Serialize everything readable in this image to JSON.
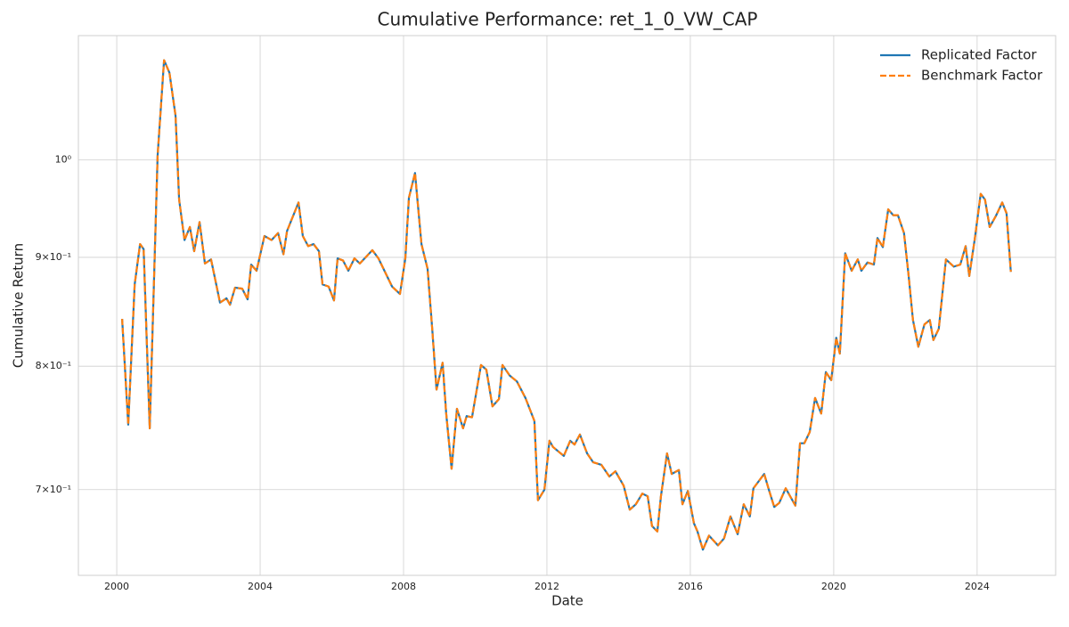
{
  "chart_data": {
    "type": "line",
    "title": "Cumulative Performance: ret_1_0_VW_CAP",
    "xlabel": "Date",
    "ylabel": "Cumulative Return",
    "x": [
      2000.15,
      2000.32,
      2000.5,
      2000.65,
      2000.75,
      2000.92,
      2001.14,
      2001.32,
      2001.47,
      2001.64,
      2001.74,
      2001.89,
      2002.04,
      2002.16,
      2002.31,
      2002.46,
      2002.63,
      2002.88,
      2003.06,
      2003.16,
      2003.3,
      2003.5,
      2003.65,
      2003.75,
      2003.9,
      2004.12,
      2004.32,
      2004.5,
      2004.65,
      2004.75,
      2005.07,
      2005.19,
      2005.34,
      2005.49,
      2005.64,
      2005.74,
      2005.91,
      2006.06,
      2006.16,
      2006.31,
      2006.46,
      2006.63,
      2006.78,
      2007.13,
      2007.3,
      2007.68,
      2007.9,
      2008.05,
      2008.15,
      2008.32,
      2008.5,
      2008.67,
      2008.8,
      2008.92,
      2009.09,
      2009.19,
      2009.34,
      2009.49,
      2009.66,
      2009.76,
      2009.91,
      2010.16,
      2010.31,
      2010.48,
      2010.66,
      2010.76,
      2010.96,
      2011.16,
      2011.4,
      2011.65,
      2011.75,
      2011.93,
      2012.07,
      2012.17,
      2012.47,
      2012.65,
      2012.77,
      2012.92,
      2013.12,
      2013.29,
      2013.52,
      2013.74,
      2013.91,
      2014.14,
      2014.31,
      2014.48,
      2014.66,
      2014.81,
      2014.93,
      2015.08,
      2015.18,
      2015.35,
      2015.48,
      2015.68,
      2015.78,
      2015.93,
      2016.1,
      2016.2,
      2016.35,
      2016.52,
      2016.77,
      2016.94,
      2017.12,
      2017.32,
      2017.49,
      2017.66,
      2017.76,
      2018.06,
      2018.19,
      2018.34,
      2018.48,
      2018.66,
      2018.93,
      2019.06,
      2019.18,
      2019.33,
      2019.48,
      2019.65,
      2019.78,
      2019.93,
      2020.07,
      2020.17,
      2020.32,
      2020.5,
      2020.67,
      2020.77,
      2020.94,
      2021.12,
      2021.22,
      2021.37,
      2021.52,
      2021.66,
      2021.79,
      2021.96,
      2022.09,
      2022.21,
      2022.36,
      2022.53,
      2022.68,
      2022.78,
      2022.93,
      2023.13,
      2023.35,
      2023.53,
      2023.68,
      2023.78,
      2023.93,
      2024.1,
      2024.22,
      2024.35,
      2024.52,
      2024.7,
      2024.82,
      2024.94
    ],
    "series": [
      {
        "name": "Replicated Factor",
        "color": "#1f77b4",
        "dash": "solid",
        "values": [
          0.842,
          0.751,
          0.874,
          0.913,
          0.908,
          0.748,
          1.005,
          1.114,
          1.099,
          1.049,
          0.958,
          0.917,
          0.93,
          0.906,
          0.935,
          0.894,
          0.898,
          0.857,
          0.861,
          0.855,
          0.871,
          0.87,
          0.86,
          0.893,
          0.887,
          0.921,
          0.917,
          0.924,
          0.903,
          0.926,
          0.955,
          0.921,
          0.911,
          0.913,
          0.906,
          0.874,
          0.872,
          0.859,
          0.899,
          0.897,
          0.887,
          0.899,
          0.894,
          0.907,
          0.899,
          0.872,
          0.865,
          0.899,
          0.96,
          0.986,
          0.913,
          0.889,
          0.833,
          0.78,
          0.803,
          0.76,
          0.716,
          0.764,
          0.748,
          0.758,
          0.757,
          0.801,
          0.797,
          0.766,
          0.772,
          0.801,
          0.792,
          0.787,
          0.773,
          0.754,
          0.692,
          0.7,
          0.738,
          0.733,
          0.726,
          0.738,
          0.735,
          0.743,
          0.728,
          0.721,
          0.719,
          0.71,
          0.714,
          0.703,
          0.685,
          0.689,
          0.697,
          0.695,
          0.673,
          0.669,
          0.695,
          0.728,
          0.712,
          0.715,
          0.689,
          0.699,
          0.675,
          0.669,
          0.656,
          0.666,
          0.659,
          0.664,
          0.68,
          0.667,
          0.689,
          0.68,
          0.701,
          0.712,
          0.7,
          0.687,
          0.69,
          0.701,
          0.688,
          0.736,
          0.736,
          0.745,
          0.773,
          0.76,
          0.795,
          0.788,
          0.825,
          0.811,
          0.904,
          0.887,
          0.898,
          0.887,
          0.895,
          0.893,
          0.919,
          0.91,
          0.948,
          0.942,
          0.942,
          0.924,
          0.882,
          0.841,
          0.817,
          0.837,
          0.841,
          0.823,
          0.833,
          0.898,
          0.891,
          0.893,
          0.911,
          0.882,
          0.917,
          0.964,
          0.958,
          0.93,
          0.941,
          0.955,
          0.944,
          0.886
        ]
      },
      {
        "name": "Benchmark Factor",
        "color": "#ff7f0e",
        "dash": "dashed",
        "values": [
          0.842,
          0.751,
          0.874,
          0.913,
          0.908,
          0.748,
          1.005,
          1.114,
          1.099,
          1.049,
          0.958,
          0.917,
          0.93,
          0.906,
          0.935,
          0.894,
          0.898,
          0.857,
          0.861,
          0.855,
          0.871,
          0.87,
          0.86,
          0.893,
          0.887,
          0.921,
          0.917,
          0.924,
          0.903,
          0.926,
          0.955,
          0.921,
          0.911,
          0.913,
          0.906,
          0.874,
          0.872,
          0.859,
          0.899,
          0.897,
          0.887,
          0.899,
          0.894,
          0.907,
          0.899,
          0.872,
          0.865,
          0.899,
          0.96,
          0.986,
          0.913,
          0.889,
          0.833,
          0.78,
          0.803,
          0.76,
          0.716,
          0.764,
          0.748,
          0.758,
          0.757,
          0.801,
          0.797,
          0.766,
          0.772,
          0.801,
          0.792,
          0.787,
          0.773,
          0.754,
          0.692,
          0.7,
          0.738,
          0.733,
          0.726,
          0.738,
          0.735,
          0.743,
          0.728,
          0.721,
          0.719,
          0.71,
          0.714,
          0.703,
          0.685,
          0.689,
          0.697,
          0.695,
          0.673,
          0.669,
          0.695,
          0.728,
          0.712,
          0.715,
          0.689,
          0.699,
          0.675,
          0.669,
          0.656,
          0.666,
          0.659,
          0.664,
          0.68,
          0.667,
          0.689,
          0.68,
          0.701,
          0.712,
          0.7,
          0.687,
          0.69,
          0.701,
          0.688,
          0.736,
          0.736,
          0.745,
          0.773,
          0.76,
          0.795,
          0.788,
          0.825,
          0.811,
          0.904,
          0.887,
          0.898,
          0.887,
          0.895,
          0.893,
          0.919,
          0.91,
          0.948,
          0.942,
          0.942,
          0.924,
          0.882,
          0.841,
          0.817,
          0.837,
          0.841,
          0.823,
          0.833,
          0.898,
          0.891,
          0.893,
          0.911,
          0.882,
          0.917,
          0.964,
          0.958,
          0.93,
          0.941,
          0.955,
          0.944,
          0.886
        ]
      }
    ],
    "xlim": [
      1998.93,
      2026.19
    ],
    "xticks": [
      2000,
      2004,
      2008,
      2012,
      2016,
      2020,
      2024
    ],
    "ylim": [
      0.638,
      1.144
    ],
    "yticks": [
      {
        "value": 0.7,
        "label": "7×10⁻¹"
      },
      {
        "value": 0.8,
        "label": "8×10⁻¹"
      },
      {
        "value": 0.9,
        "label": "9×10⁻¹"
      },
      {
        "value": 1,
        "label": "10⁰"
      }
    ],
    "ylog": true,
    "grid": true,
    "legend": "upper right"
  }
}
